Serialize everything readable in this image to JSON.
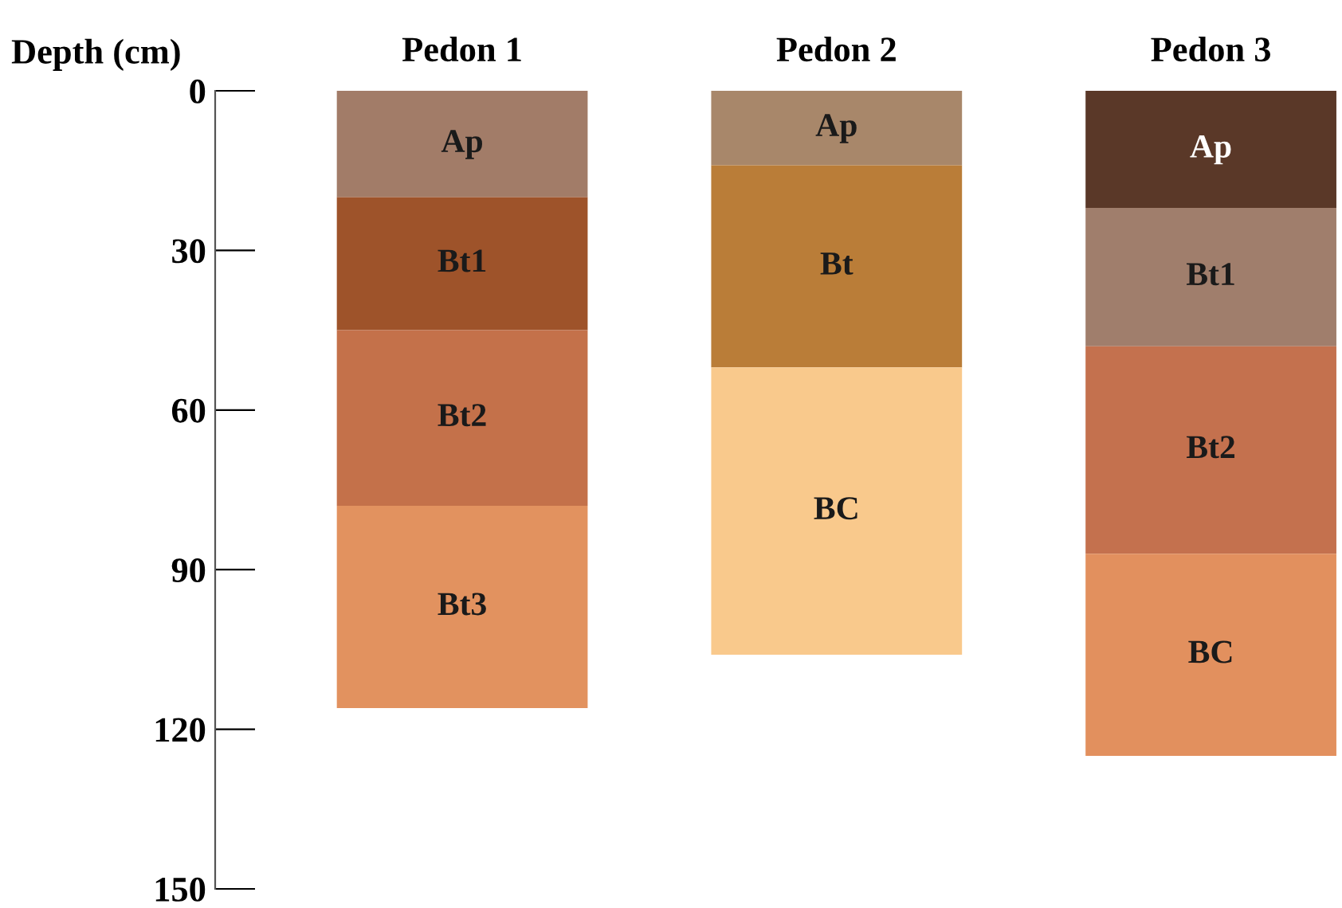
{
  "chart_data": {
    "type": "bar",
    "stacked": true,
    "ylabel": "Depth (cm)",
    "categories": [
      "Pedon 1",
      "Pedon 2",
      "Pedon 3"
    ],
    "series": [
      {
        "values": [
          20,
          14,
          22
        ],
        "colors": [
          "#a27c68",
          "#a8876a",
          "#5a3828"
        ],
        "value_labels": [
          "Ap",
          "Ap",
          "Ap"
        ]
      },
      {
        "values": [
          25,
          38,
          26
        ],
        "colors": [
          "#9e532a",
          "#ba7d38",
          "#a07e6c"
        ],
        "value_labels": [
          "Bt1",
          "Bt",
          "Bt1"
        ]
      },
      {
        "values": [
          33,
          54,
          39
        ],
        "colors": [
          "#c4714a",
          "#f9c98c",
          "#c4714e"
        ],
        "value_labels": [
          "Bt2",
          "BC",
          "Bt2"
        ]
      },
      {
        "values": [
          38,
          null,
          38
        ],
        "colors": [
          "#e2925f",
          "#e2925f",
          "#e2905e"
        ],
        "value_labels": [
          "Bt3",
          null,
          "BC"
        ]
      }
    ],
    "ylim": [
      150,
      0
    ],
    "yticks": [
      0,
      30,
      60,
      90,
      120,
      150
    ],
    "grid": false,
    "legend": false
  }
}
